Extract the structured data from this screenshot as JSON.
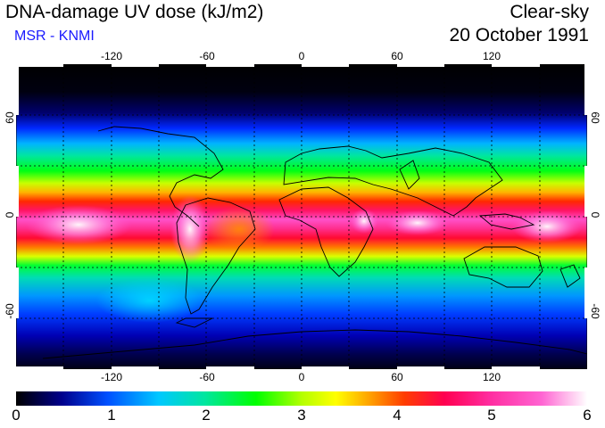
{
  "header": {
    "title": "DNA-damage UV dose (kJ/m2)",
    "subtitle": "MSR - KNMI",
    "sky_condition": "Clear-sky",
    "date": "20 October 1991"
  },
  "map": {
    "projection": "equirectangular",
    "lon_range": [
      -180,
      180
    ],
    "lat_range": [
      -90,
      90
    ],
    "lon_ticks": [
      "-120",
      "-60",
      "0",
      "60",
      "120"
    ],
    "lat_ticks": [
      "60",
      "0",
      "-60"
    ],
    "grid": "dashed every 30 degrees",
    "coastlines": true
  },
  "colorbar": {
    "min": 0,
    "max": 6,
    "tick_labels": [
      "0",
      "1",
      "2",
      "3",
      "4",
      "5",
      "6"
    ],
    "colors": [
      "#000000",
      "#0000c8",
      "#0050ff",
      "#00c8ff",
      "#00e6a0",
      "#00ff00",
      "#b4ff00",
      "#ffff00",
      "#ffa000",
      "#ff3c00",
      "#ff0050",
      "#ff2da0",
      "#ff64d2",
      "#ffffff"
    ]
  }
}
